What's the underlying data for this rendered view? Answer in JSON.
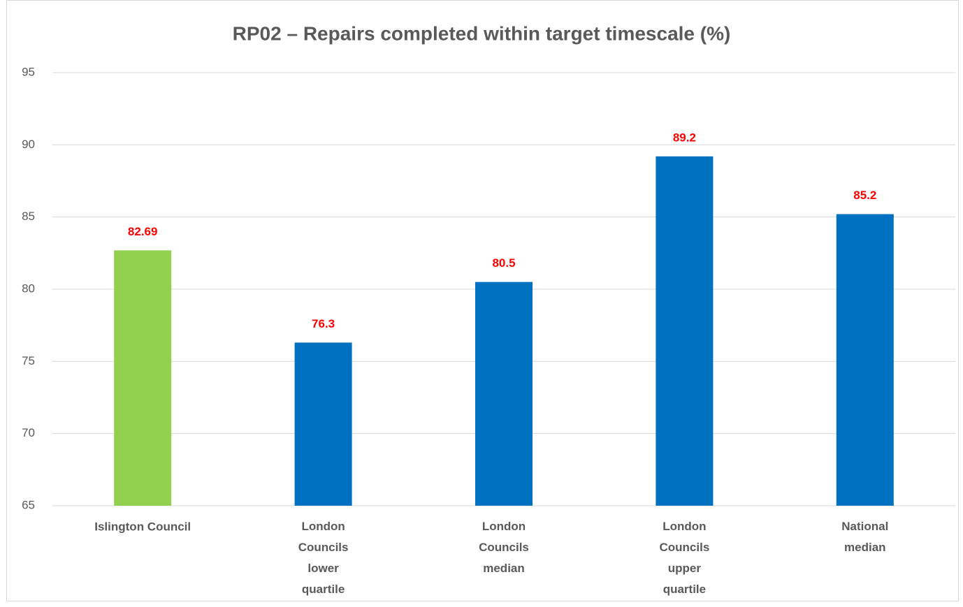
{
  "chart_data": {
    "type": "bar",
    "title": "RP02 – Repairs completed within target timescale (%)",
    "categories": [
      "Islington Council",
      "London Councils lower quartile",
      "London Councils median",
      "London Councils upper quartile",
      "National median"
    ],
    "values": [
      82.69,
      76.3,
      80.5,
      89.2,
      85.2
    ],
    "colors": [
      "#92d050",
      "#0070c0",
      "#0070c0",
      "#0070c0",
      "#0070c0"
    ],
    "value_label_color": "#ff0000",
    "ylim": [
      65,
      95
    ],
    "yticks": [
      65,
      70,
      75,
      80,
      85,
      90,
      95
    ],
    "grid": true
  }
}
